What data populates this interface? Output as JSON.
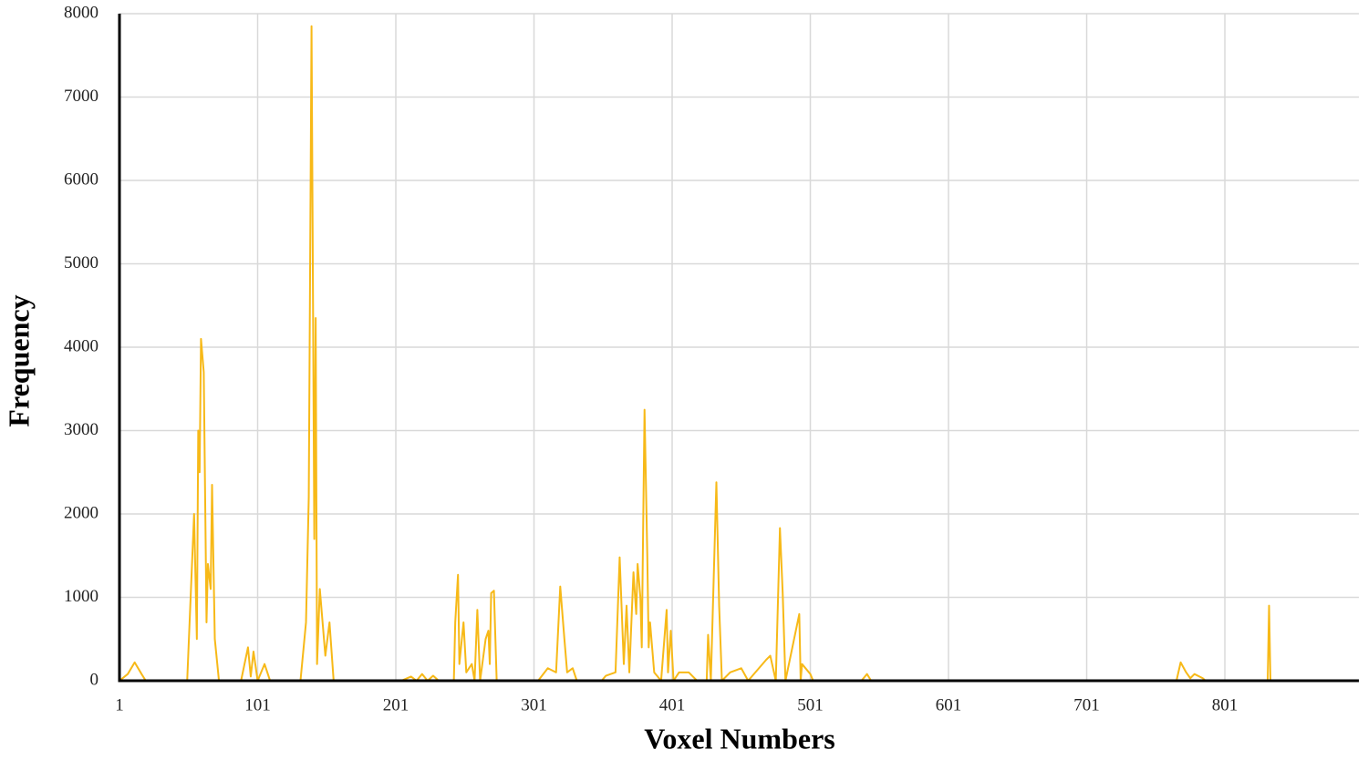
{
  "chart_data": {
    "type": "line",
    "xlabel": "Voxel Numbers",
    "ylabel": "Frequency",
    "color": "#f7b918",
    "x": [
      1,
      7,
      12,
      17,
      20,
      50,
      55,
      57,
      58,
      59,
      60,
      62,
      64,
      65,
      67,
      68,
      70,
      73,
      89,
      94,
      96,
      98,
      101,
      106,
      110,
      132,
      136,
      138,
      140,
      142,
      143,
      144,
      146,
      150,
      153,
      156,
      205,
      212,
      216,
      220,
      224,
      228,
      232,
      243,
      244,
      246,
      247,
      250,
      252,
      256,
      258,
      260,
      262,
      266,
      268,
      269,
      270,
      272,
      274,
      304,
      311,
      317,
      320,
      323,
      325,
      329,
      332,
      350,
      353,
      360,
      363,
      366,
      368,
      370,
      373,
      375,
      376,
      378,
      379,
      381,
      383,
      384,
      385,
      388,
      393,
      397,
      398,
      400,
      402,
      406,
      413,
      419,
      426,
      427,
      429,
      433,
      435,
      437,
      443,
      451,
      456,
      469,
      472,
      476,
      479,
      481,
      483,
      493,
      494,
      495,
      501,
      503,
      538,
      542,
      545,
      766,
      769,
      773,
      776,
      779,
      785,
      787,
      832,
      833,
      834,
      845
    ],
    "values": [
      0,
      80,
      220,
      80,
      0,
      0,
      2000,
      500,
      3000,
      2500,
      4100,
      3700,
      700,
      1400,
      1100,
      2350,
      500,
      0,
      0,
      400,
      50,
      350,
      0,
      200,
      0,
      0,
      700,
      2200,
      7850,
      1700,
      4350,
      200,
      1100,
      300,
      700,
      0,
      0,
      50,
      0,
      80,
      0,
      60,
      0,
      0,
      700,
      1270,
      200,
      700,
      100,
      200,
      0,
      850,
      0,
      500,
      600,
      200,
      1050,
      1080,
      0,
      0,
      150,
      100,
      1130,
      500,
      100,
      150,
      0,
      0,
      60,
      100,
      1480,
      200,
      900,
      100,
      1300,
      800,
      1400,
      1000,
      400,
      3250,
      1500,
      400,
      700,
      100,
      0,
      850,
      100,
      600,
      0,
      100,
      100,
      0,
      0,
      550,
      0,
      2380,
      900,
      0,
      100,
      150,
      0,
      250,
      300,
      0,
      1830,
      1050,
      0,
      800,
      0,
      200,
      80,
      0,
      0,
      80,
      0,
      0,
      220,
      100,
      30,
      80,
      30,
      0,
      0,
      900,
      0,
      0
    ],
    "xlim": [
      1,
      898
    ],
    "xticks": [
      1,
      101,
      201,
      301,
      401,
      501,
      601,
      701,
      801
    ],
    "ylim": [
      0,
      8000
    ],
    "yticks": [
      0,
      1000,
      2000,
      3000,
      4000,
      5000,
      6000,
      7000,
      8000
    ],
    "grid": true
  }
}
